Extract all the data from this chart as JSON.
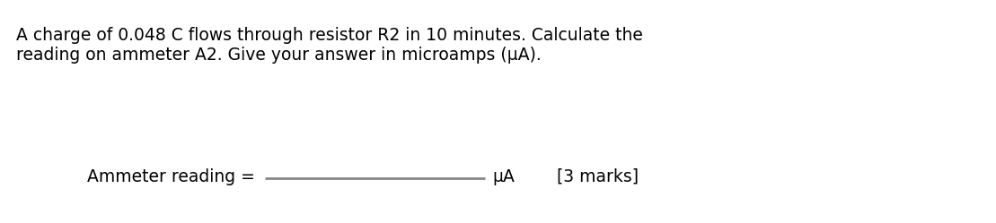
{
  "background_color": "#ffffff",
  "paragraph_line1": "A charge of 0.048 C flows through resistor R2 in 10 minutes. Calculate the",
  "paragraph_line2": "reading on ammeter A2. Give your answer in microamps (μA).",
  "paragraph_fontsize": 13.5,
  "answer_label": "Ammeter reading = ",
  "answer_unit": "μA",
  "marks_label": "[3 marks]",
  "answer_fontsize": 13.5,
  "line_color": "#888888",
  "line_width": 2.0,
  "font_family": "DejaVu Sans"
}
